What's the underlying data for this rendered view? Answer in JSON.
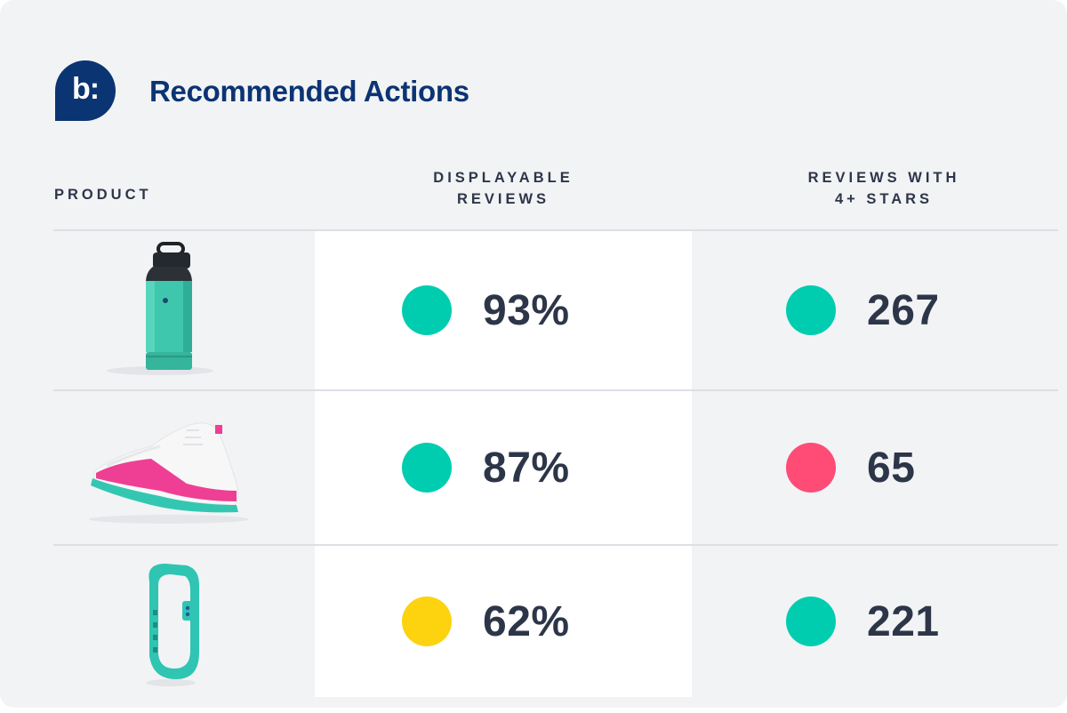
{
  "brand": {
    "logo_text": "b:"
  },
  "title": "Recommended Actions",
  "columns": {
    "product": "PRODUCT",
    "displayable": [
      "DISPLAYABLE",
      "REVIEWS"
    ],
    "stars": [
      "REVIEWS WITH",
      "4+ STARS"
    ]
  },
  "colors": {
    "good": "#00cdb0",
    "bad": "#fe4c76",
    "warn": "#fdd20f",
    "brand": "#0b3473"
  },
  "rows": [
    {
      "product_icon": "water-bottle-icon",
      "displayable": "93%",
      "displayable_status": "good",
      "stars": "267",
      "stars_status": "good"
    },
    {
      "product_icon": "sneaker-icon",
      "displayable": "87%",
      "displayable_status": "good",
      "stars": "65",
      "stars_status": "bad"
    },
    {
      "product_icon": "fitness-band-icon",
      "displayable": "62%",
      "displayable_status": "warn",
      "stars": "221",
      "stars_status": "good"
    }
  ]
}
